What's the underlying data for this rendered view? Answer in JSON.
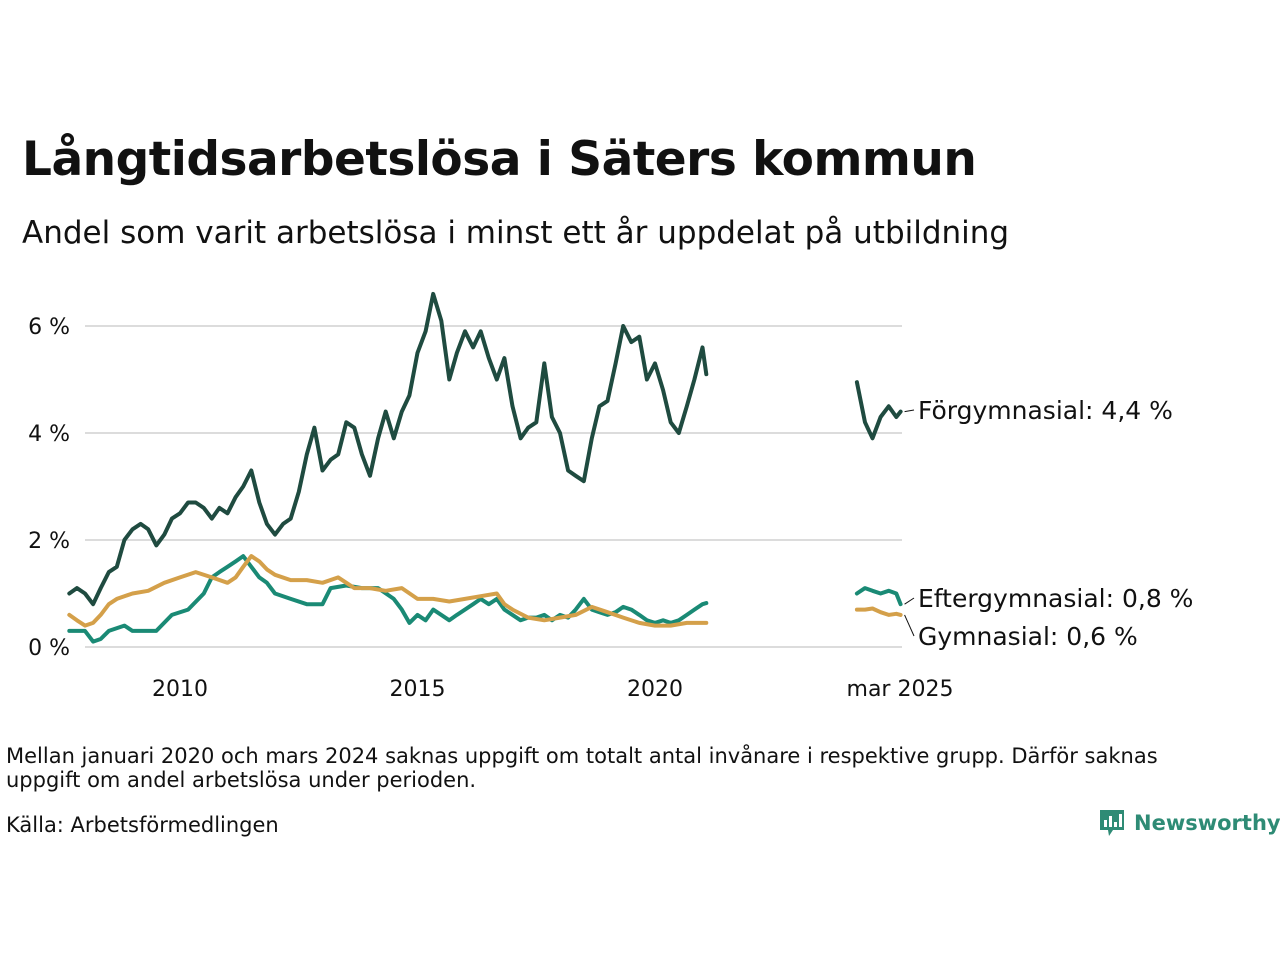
{
  "header": {
    "title": "Långtidsarbetslösa i Säters kommun",
    "subtitle": "Andel som varit arbetslösa i minst ett år uppdelat på utbildning"
  },
  "footer": {
    "note": "Mellan januari 2020 och mars 2024 saknas uppgift om totalt antal invånare i respektive grupp. Därför saknas uppgift om andel arbetslösa under perioden.",
    "source": "Källa: Arbetsförmedlingen",
    "brand": "Newsworthy",
    "brand_icon": "bar-chart-logo-icon"
  },
  "chart_data": {
    "type": "line",
    "y_unit": "%",
    "ylim": [
      0,
      6.8
    ],
    "y_ticks": [
      {
        "value": 0,
        "label": "0 %"
      },
      {
        "value": 2,
        "label": "2 %"
      },
      {
        "value": 4,
        "label": "4 %"
      },
      {
        "value": 6,
        "label": "6 %"
      }
    ],
    "x_ticks": [
      {
        "value": 2010.0,
        "label": "2010"
      },
      {
        "value": 2015.0,
        "label": "2015"
      },
      {
        "value": 2020.0,
        "label": "2020"
      }
    ],
    "grid": true,
    "series": [
      {
        "name": "Förgymnasial",
        "end_label": "Förgymnasial: 4,4 %",
        "color": "#1f4b40",
        "segments": [
          [
            [
              2007.67,
              1.0
            ],
            [
              2007.83,
              1.1
            ],
            [
              2008.0,
              1.0
            ],
            [
              2008.17,
              0.8
            ],
            [
              2008.33,
              1.1
            ],
            [
              2008.5,
              1.4
            ],
            [
              2008.67,
              1.5
            ],
            [
              2008.83,
              2.0
            ],
            [
              2009.0,
              2.2
            ],
            [
              2009.17,
              2.3
            ],
            [
              2009.33,
              2.2
            ],
            [
              2009.5,
              1.9
            ],
            [
              2009.67,
              2.1
            ],
            [
              2009.83,
              2.4
            ],
            [
              2010.0,
              2.5
            ],
            [
              2010.17,
              2.7
            ],
            [
              2010.33,
              2.7
            ],
            [
              2010.5,
              2.6
            ],
            [
              2010.67,
              2.4
            ],
            [
              2010.83,
              2.6
            ],
            [
              2011.0,
              2.5
            ],
            [
              2011.17,
              2.8
            ],
            [
              2011.33,
              3.0
            ],
            [
              2011.5,
              3.3
            ],
            [
              2011.67,
              2.7
            ],
            [
              2011.83,
              2.3
            ],
            [
              2012.0,
              2.1
            ],
            [
              2012.17,
              2.3
            ],
            [
              2012.33,
              2.4
            ],
            [
              2012.5,
              2.9
            ],
            [
              2012.67,
              3.6
            ],
            [
              2012.83,
              4.1
            ],
            [
              2013.0,
              3.3
            ],
            [
              2013.17,
              3.5
            ],
            [
              2013.33,
              3.6
            ],
            [
              2013.5,
              4.2
            ],
            [
              2013.67,
              4.1
            ],
            [
              2013.83,
              3.6
            ],
            [
              2014.0,
              3.2
            ],
            [
              2014.17,
              3.9
            ],
            [
              2014.33,
              4.4
            ],
            [
              2014.5,
              3.9
            ],
            [
              2014.67,
              4.4
            ],
            [
              2014.83,
              4.7
            ],
            [
              2015.0,
              5.5
            ],
            [
              2015.17,
              5.9
            ],
            [
              2015.33,
              6.6
            ],
            [
              2015.5,
              6.1
            ],
            [
              2015.67,
              5.0
            ],
            [
              2015.83,
              5.5
            ],
            [
              2016.0,
              5.9
            ],
            [
              2016.17,
              5.6
            ],
            [
              2016.33,
              5.9
            ],
            [
              2016.5,
              5.4
            ],
            [
              2016.67,
              5.0
            ],
            [
              2016.83,
              5.4
            ],
            [
              2017.0,
              4.5
            ],
            [
              2017.17,
              3.9
            ],
            [
              2017.33,
              4.1
            ],
            [
              2017.5,
              4.2
            ],
            [
              2017.67,
              5.3
            ],
            [
              2017.83,
              4.3
            ],
            [
              2018.0,
              4.0
            ],
            [
              2018.17,
              3.3
            ],
            [
              2018.33,
              3.2
            ],
            [
              2018.5,
              3.1
            ],
            [
              2018.67,
              3.9
            ],
            [
              2018.83,
              4.5
            ],
            [
              2019.0,
              4.6
            ],
            [
              2019.17,
              5.3
            ],
            [
              2019.33,
              6.0
            ],
            [
              2019.5,
              5.7
            ],
            [
              2019.67,
              5.8
            ],
            [
              2019.83,
              5.0
            ],
            [
              2020.0,
              5.3
            ],
            [
              2020.17,
              4.8
            ],
            [
              2020.33,
              4.2
            ],
            [
              2020.5,
              4.0
            ],
            [
              2020.67,
              4.5
            ],
            [
              2020.83,
              5.0
            ],
            [
              2021.0,
              5.6
            ],
            [
              2021.08,
              5.1
            ]
          ],
          [
            [
              2024.25,
              4.95
            ],
            [
              2024.42,
              4.2
            ],
            [
              2024.58,
              3.9
            ],
            [
              2024.75,
              4.3
            ],
            [
              2024.92,
              4.5
            ],
            [
              2025.08,
              4.3
            ],
            [
              2025.17,
              4.4
            ]
          ]
        ]
      },
      {
        "name": "Eftergymnasial",
        "end_label": "Eftergymnasial: 0,8 %",
        "color": "#1a8a75",
        "segments": [
          [
            [
              2007.67,
              0.3
            ],
            [
              2008.0,
              0.3
            ],
            [
              2008.17,
              0.1
            ],
            [
              2008.33,
              0.15
            ],
            [
              2008.5,
              0.3
            ],
            [
              2008.83,
              0.4
            ],
            [
              2009.0,
              0.3
            ],
            [
              2009.5,
              0.3
            ],
            [
              2009.83,
              0.6
            ],
            [
              2010.17,
              0.7
            ],
            [
              2010.5,
              1.0
            ],
            [
              2010.67,
              1.3
            ],
            [
              2010.83,
              1.4
            ],
            [
              2011.0,
              1.5
            ],
            [
              2011.17,
              1.6
            ],
            [
              2011.33,
              1.7
            ],
            [
              2011.5,
              1.5
            ],
            [
              2011.67,
              1.3
            ],
            [
              2011.83,
              1.2
            ],
            [
              2012.0,
              1.0
            ],
            [
              2012.33,
              0.9
            ],
            [
              2012.67,
              0.8
            ],
            [
              2013.0,
              0.8
            ],
            [
              2013.17,
              1.1
            ],
            [
              2013.5,
              1.15
            ],
            [
              2013.83,
              1.1
            ],
            [
              2014.17,
              1.1
            ],
            [
              2014.5,
              0.9
            ],
            [
              2014.67,
              0.7
            ],
            [
              2014.83,
              0.45
            ],
            [
              2015.0,
              0.6
            ],
            [
              2015.17,
              0.5
            ],
            [
              2015.33,
              0.7
            ],
            [
              2015.5,
              0.6
            ],
            [
              2015.67,
              0.5
            ],
            [
              2015.83,
              0.6
            ],
            [
              2016.0,
              0.7
            ],
            [
              2016.17,
              0.8
            ],
            [
              2016.33,
              0.9
            ],
            [
              2016.5,
              0.8
            ],
            [
              2016.67,
              0.9
            ],
            [
              2016.83,
              0.7
            ],
            [
              2017.0,
              0.6
            ],
            [
              2017.17,
              0.5
            ],
            [
              2017.33,
              0.55
            ],
            [
              2017.5,
              0.55
            ],
            [
              2017.67,
              0.6
            ],
            [
              2017.83,
              0.5
            ],
            [
              2018.0,
              0.6
            ],
            [
              2018.17,
              0.55
            ],
            [
              2018.33,
              0.7
            ],
            [
              2018.5,
              0.9
            ],
            [
              2018.67,
              0.7
            ],
            [
              2018.83,
              0.65
            ],
            [
              2019.0,
              0.6
            ],
            [
              2019.17,
              0.65
            ],
            [
              2019.33,
              0.75
            ],
            [
              2019.5,
              0.7
            ],
            [
              2019.67,
              0.6
            ],
            [
              2019.83,
              0.5
            ],
            [
              2020.0,
              0.45
            ],
            [
              2020.17,
              0.5
            ],
            [
              2020.33,
              0.45
            ],
            [
              2020.5,
              0.5
            ],
            [
              2020.67,
              0.6
            ],
            [
              2020.83,
              0.7
            ],
            [
              2021.0,
              0.8
            ],
            [
              2021.08,
              0.82
            ]
          ],
          [
            [
              2024.25,
              1.0
            ],
            [
              2024.42,
              1.1
            ],
            [
              2024.58,
              1.05
            ],
            [
              2024.75,
              1.0
            ],
            [
              2024.92,
              1.05
            ],
            [
              2025.08,
              1.0
            ],
            [
              2025.17,
              0.8
            ]
          ]
        ]
      },
      {
        "name": "Gymnasial",
        "end_label": "Gymnasial: 0,6 %",
        "color": "#d4a04a",
        "segments": [
          [
            [
              2007.67,
              0.6
            ],
            [
              2007.83,
              0.5
            ],
            [
              2008.0,
              0.4
            ],
            [
              2008.17,
              0.45
            ],
            [
              2008.33,
              0.6
            ],
            [
              2008.5,
              0.8
            ],
            [
              2008.67,
              0.9
            ],
            [
              2008.83,
              0.95
            ],
            [
              2009.0,
              1.0
            ],
            [
              2009.33,
              1.05
            ],
            [
              2009.67,
              1.2
            ],
            [
              2010.0,
              1.3
            ],
            [
              2010.33,
              1.4
            ],
            [
              2010.67,
              1.3
            ],
            [
              2011.0,
              1.2
            ],
            [
              2011.17,
              1.3
            ],
            [
              2011.33,
              1.5
            ],
            [
              2011.5,
              1.7
            ],
            [
              2011.67,
              1.6
            ],
            [
              2011.83,
              1.45
            ],
            [
              2012.0,
              1.35
            ],
            [
              2012.33,
              1.25
            ],
            [
              2012.67,
              1.25
            ],
            [
              2013.0,
              1.2
            ],
            [
              2013.33,
              1.3
            ],
            [
              2013.67,
              1.1
            ],
            [
              2014.0,
              1.1
            ],
            [
              2014.33,
              1.05
            ],
            [
              2014.67,
              1.1
            ],
            [
              2015.0,
              0.9
            ],
            [
              2015.33,
              0.9
            ],
            [
              2015.67,
              0.85
            ],
            [
              2016.0,
              0.9
            ],
            [
              2016.33,
              0.95
            ],
            [
              2016.67,
              1.0
            ],
            [
              2016.83,
              0.8
            ],
            [
              2017.0,
              0.7
            ],
            [
              2017.33,
              0.55
            ],
            [
              2017.67,
              0.5
            ],
            [
              2018.0,
              0.55
            ],
            [
              2018.33,
              0.6
            ],
            [
              2018.67,
              0.75
            ],
            [
              2019.0,
              0.65
            ],
            [
              2019.33,
              0.55
            ],
            [
              2019.67,
              0.45
            ],
            [
              2020.0,
              0.4
            ],
            [
              2020.33,
              0.4
            ],
            [
              2020.67,
              0.45
            ],
            [
              2021.0,
              0.45
            ],
            [
              2021.08,
              0.45
            ]
          ],
          [
            [
              2024.25,
              0.7
            ],
            [
              2024.42,
              0.7
            ],
            [
              2024.58,
              0.72
            ],
            [
              2024.75,
              0.65
            ],
            [
              2024.92,
              0.6
            ],
            [
              2025.08,
              0.62
            ],
            [
              2025.17,
              0.6
            ]
          ]
        ]
      }
    ]
  }
}
